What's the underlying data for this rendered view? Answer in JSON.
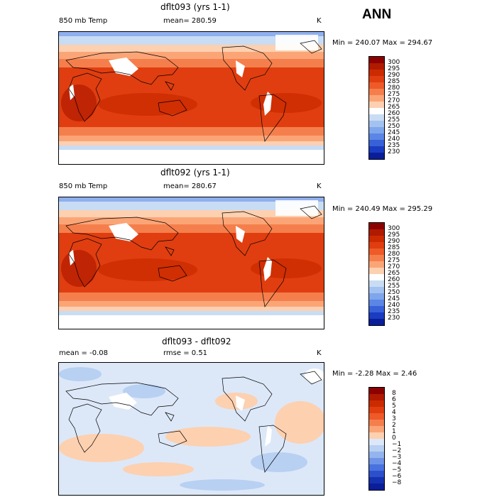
{
  "annual_label": "ANN",
  "panels": [
    {
      "title": "dflt093 (yrs 1-1)",
      "left_label": "850 mb Temp",
      "stat_text": "mean= 280.59",
      "rmse_text": "",
      "units": "K",
      "minmax": "Min = 240.07 Max = 294.67",
      "colorbar_labels": [
        "300",
        "295",
        "290",
        "285",
        "280",
        "275",
        "270",
        "265",
        "260",
        "255",
        "250",
        "245",
        "240",
        "235",
        "230"
      ],
      "colors": [
        "#8b0000",
        "#b01a00",
        "#cc2a00",
        "#e03e10",
        "#ee5a28",
        "#f57f4c",
        "#fba577",
        "#fdd0b0",
        "#ffffff",
        "#c8dcf4",
        "#a4c2f0",
        "#7ea6ec",
        "#5b86e6",
        "#3861d8",
        "#1a3cc0",
        "#0a1e9a"
      ]
    },
    {
      "title": "dflt092 (yrs 1-1)",
      "left_label": "850 mb Temp",
      "stat_text": "mean= 280.67",
      "rmse_text": "",
      "units": "K",
      "minmax": "Min = 240.49 Max = 295.29",
      "colorbar_labels": [
        "300",
        "295",
        "290",
        "285",
        "280",
        "275",
        "270",
        "265",
        "260",
        "255",
        "250",
        "245",
        "240",
        "235",
        "230"
      ],
      "colors": [
        "#8b0000",
        "#b01a00",
        "#cc2a00",
        "#e03e10",
        "#ee5a28",
        "#f57f4c",
        "#fba577",
        "#fdd0b0",
        "#ffffff",
        "#c8dcf4",
        "#a4c2f0",
        "#7ea6ec",
        "#5b86e6",
        "#3861d8",
        "#1a3cc0",
        "#0a1e9a"
      ]
    },
    {
      "title": "dflt093 - dflt092",
      "left_label": "mean =   -0.08",
      "stat_text": "rmse =    0.51",
      "rmse_text": "",
      "units": "K",
      "minmax": "Min =  -2.28 Max =   2.46",
      "colorbar_labels": [
        "8",
        "6",
        "5",
        "4",
        "3",
        "2",
        "1",
        "0",
        "−1",
        "−2",
        "−3",
        "−4",
        "−5",
        "−6",
        "−8"
      ],
      "colors": [
        "#8b0000",
        "#b01a00",
        "#cc2a00",
        "#e03e10",
        "#ee5a28",
        "#f57f4c",
        "#fba577",
        "#fdd0b0",
        "#dce8f8",
        "#b8d0f2",
        "#94b4ee",
        "#6e94e8",
        "#4a72de",
        "#2c50cc",
        "#1432b0",
        "#0a1e9a"
      ]
    }
  ]
}
